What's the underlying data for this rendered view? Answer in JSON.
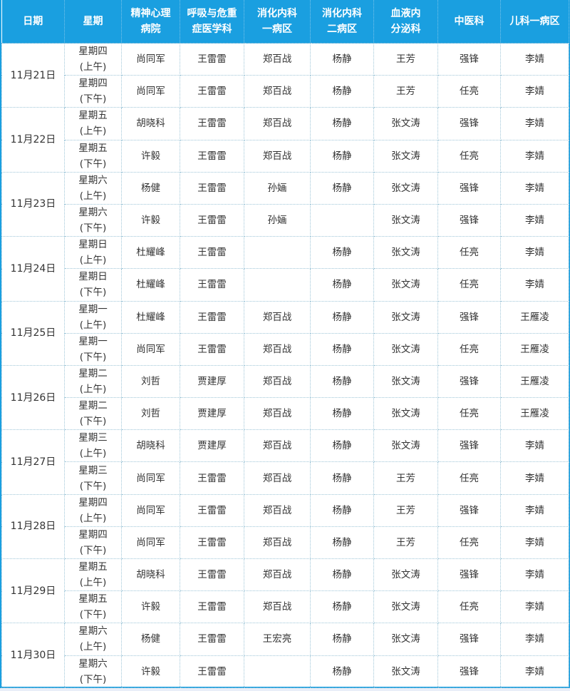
{
  "colors": {
    "header_bg": "#1a9fe0",
    "header_text": "#ffffff",
    "border": "#9fc6d8"
  },
  "headers": [
    "日期",
    "星期",
    "精神心理\n病院",
    "呼吸与危重\n症医学科",
    "消化内科\n一病区",
    "消化内科\n二病区",
    "血液内\n分泌科",
    "中医科",
    "儿科一病区"
  ],
  "days": [
    {
      "date": "11月21日",
      "rows": [
        {
          "weekday": "星期四\n(上午)",
          "cells": [
            "尚同军",
            "王雷雷",
            "郑百战",
            "杨静",
            "王芳",
            "强锋",
            "李婧"
          ]
        },
        {
          "weekday": "星期四\n(下午)",
          "cells": [
            "尚同军",
            "王雷雷",
            "郑百战",
            "杨静",
            "王芳",
            "任亮",
            "李婧"
          ]
        }
      ]
    },
    {
      "date": "11月22日",
      "rows": [
        {
          "weekday": "星期五\n(上午)",
          "cells": [
            "胡晓科",
            "王雷雷",
            "郑百战",
            "杨静",
            "张文涛",
            "强锋",
            "李婧"
          ]
        },
        {
          "weekday": "星期五\n(下午)",
          "cells": [
            "许毅",
            "王雷雷",
            "郑百战",
            "杨静",
            "张文涛",
            "任亮",
            "李婧"
          ]
        }
      ]
    },
    {
      "date": "11月23日",
      "rows": [
        {
          "weekday": "星期六\n(上午)",
          "cells": [
            "杨健",
            "王雷雷",
            "孙婳",
            "杨静",
            "张文涛",
            "强锋",
            "李婧"
          ]
        },
        {
          "weekday": "星期六\n(下午)",
          "cells": [
            "许毅",
            "王雷雷",
            "孙婳",
            "",
            "张文涛",
            "强锋",
            "李婧"
          ]
        }
      ]
    },
    {
      "date": "11月24日",
      "rows": [
        {
          "weekday": "星期日\n(上午)",
          "cells": [
            "杜耀峰",
            "王雷雷",
            "",
            "杨静",
            "张文涛",
            "任亮",
            "李婧"
          ]
        },
        {
          "weekday": "星期日\n(下午)",
          "cells": [
            "杜耀峰",
            "王雷雷",
            "",
            "杨静",
            "张文涛",
            "任亮",
            "李婧"
          ]
        }
      ]
    },
    {
      "date": "11月25日",
      "rows": [
        {
          "weekday": "星期一\n(上午)",
          "cells": [
            "杜耀峰",
            "王雷雷",
            "郑百战",
            "杨静",
            "张文涛",
            "强锋",
            "王雁凌"
          ]
        },
        {
          "weekday": "星期一\n(下午)",
          "cells": [
            "尚同军",
            "王雷雷",
            "郑百战",
            "杨静",
            "张文涛",
            "任亮",
            "王雁凌"
          ]
        }
      ]
    },
    {
      "date": "11月26日",
      "rows": [
        {
          "weekday": "星期二\n(上午)",
          "cells": [
            "刘哲",
            "贾建厚",
            "郑百战",
            "杨静",
            "张文涛",
            "强锋",
            "王雁凌"
          ]
        },
        {
          "weekday": "星期二\n(下午)",
          "cells": [
            "刘哲",
            "贾建厚",
            "郑百战",
            "杨静",
            "张文涛",
            "任亮",
            "王雁凌"
          ]
        }
      ]
    },
    {
      "date": "11月27日",
      "rows": [
        {
          "weekday": "星期三\n(上午)",
          "cells": [
            "胡晓科",
            "贾建厚",
            "郑百战",
            "杨静",
            "张文涛",
            "强锋",
            "李婧"
          ]
        },
        {
          "weekday": "星期三\n(下午)",
          "cells": [
            "尚同军",
            "王雷雷",
            "郑百战",
            "杨静",
            "王芳",
            "任亮",
            "李婧"
          ]
        }
      ]
    },
    {
      "date": "11月28日",
      "rows": [
        {
          "weekday": "星期四\n(上午)",
          "cells": [
            "尚同军",
            "王雷雷",
            "郑百战",
            "杨静",
            "王芳",
            "强锋",
            "李婧"
          ]
        },
        {
          "weekday": "星期四\n(下午)",
          "cells": [
            "尚同军",
            "王雷雷",
            "郑百战",
            "杨静",
            "王芳",
            "任亮",
            "李婧"
          ]
        }
      ]
    },
    {
      "date": "11月29日",
      "rows": [
        {
          "weekday": "星期五\n(上午)",
          "cells": [
            "胡晓科",
            "王雷雷",
            "郑百战",
            "杨静",
            "张文涛",
            "强锋",
            "李婧"
          ]
        },
        {
          "weekday": "星期五\n(下午)",
          "cells": [
            "许毅",
            "王雷雷",
            "郑百战",
            "杨静",
            "张文涛",
            "任亮",
            "李婧"
          ]
        }
      ]
    },
    {
      "date": "11月30日",
      "rows": [
        {
          "weekday": "星期六\n(上午)",
          "cells": [
            "杨健",
            "王雷雷",
            "王宏亮",
            "杨静",
            "张文涛",
            "强锋",
            "李婧"
          ]
        },
        {
          "weekday": "星期六\n(下午)",
          "cells": [
            "许毅",
            "王雷雷",
            "",
            "杨静",
            "张文涛",
            "强锋",
            "李婧"
          ]
        }
      ]
    }
  ]
}
